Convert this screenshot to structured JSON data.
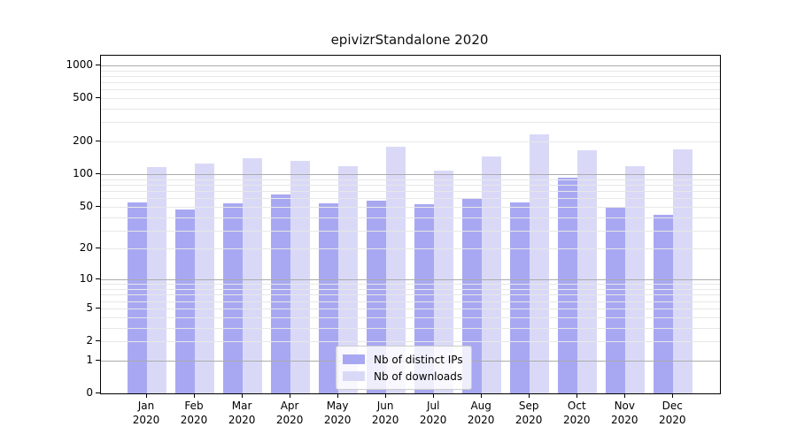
{
  "title": "epivizrStandalone 2020",
  "colors": {
    "distinct_ips_bar": "#a8a8f2",
    "downloads_bar": "#d9d9f7",
    "major_gridline": "#ababab",
    "minor_gridline": "#e7e7e7",
    "axis": "#000000"
  },
  "legend": {
    "position": "lower center",
    "items": [
      {
        "label": "Nb of distinct IPs",
        "series": "distinct_ips"
      },
      {
        "label": "Nb of downloads",
        "series": "downloads"
      }
    ]
  },
  "chart_data": {
    "type": "bar",
    "title": "epivizrStandalone 2020",
    "categories": [
      "Jan",
      "Feb",
      "Mar",
      "Apr",
      "May",
      "Jun",
      "Jul",
      "Aug",
      "Sep",
      "Oct",
      "Nov",
      "Dec"
    ],
    "category_year": "2020",
    "series": [
      {
        "name": "Nb of distinct IPs",
        "color": "#a8a8f2",
        "values": [
          55,
          47,
          54,
          65,
          54,
          57,
          53,
          59,
          55,
          93,
          50,
          42
        ]
      },
      {
        "name": "Nb of downloads",
        "color": "#d9d9f7",
        "values": [
          116,
          125,
          140,
          134,
          119,
          180,
          109,
          146,
          235,
          167,
          118,
          170
        ]
      }
    ],
    "xlabel": "",
    "ylabel": "",
    "y_scale": "log10(1+x)",
    "ylim": [
      0,
      1224
    ],
    "y_tick_values": [
      0,
      1,
      2,
      5,
      10,
      20,
      50,
      100,
      200,
      500,
      1000
    ],
    "y_major_gridlines": [
      1,
      10,
      100,
      1000
    ],
    "y_minor_gridlines": [
      2,
      3,
      4,
      5,
      6,
      7,
      8,
      9,
      20,
      30,
      40,
      50,
      60,
      70,
      80,
      90,
      200,
      300,
      400,
      500,
      600,
      700,
      800,
      900
    ],
    "grid": true,
    "gridlines_above_bars": true
  }
}
